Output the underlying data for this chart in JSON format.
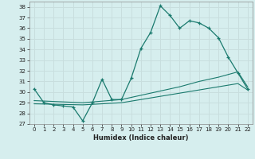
{
  "xlabel": "Humidex (Indice chaleur)",
  "bg_color": "#d6eeee",
  "grid_color": "#c8dede",
  "line_color": "#1a7a6e",
  "xlim": [
    -0.5,
    22.5
  ],
  "ylim": [
    27,
    38.5
  ],
  "yticks": [
    27,
    28,
    29,
    30,
    31,
    32,
    33,
    34,
    35,
    36,
    37,
    38
  ],
  "xticks": [
    0,
    1,
    2,
    3,
    4,
    5,
    6,
    7,
    8,
    9,
    10,
    11,
    12,
    13,
    14,
    15,
    16,
    17,
    18,
    19,
    20,
    21,
    22
  ],
  "series1_x": [
    0,
    1,
    2,
    3,
    4,
    5,
    6,
    7,
    8,
    9,
    10,
    11,
    12,
    13,
    14,
    15,
    16,
    17,
    18,
    19,
    20,
    21,
    22
  ],
  "series1_y": [
    30.3,
    29.0,
    28.8,
    28.7,
    28.6,
    27.3,
    29.0,
    31.2,
    29.3,
    29.3,
    31.3,
    34.1,
    35.6,
    38.1,
    37.2,
    36.0,
    36.7,
    36.5,
    36.0,
    35.1,
    33.3,
    31.8,
    30.3
  ],
  "series2_x": [
    0,
    5,
    9,
    11,
    13,
    15,
    17,
    19,
    21,
    22
  ],
  "series2_y": [
    29.2,
    29.0,
    29.3,
    29.7,
    30.1,
    30.5,
    31.0,
    31.4,
    31.9,
    30.5
  ],
  "series3_x": [
    0,
    5,
    9,
    11,
    13,
    15,
    17,
    19,
    21,
    22
  ],
  "series3_y": [
    28.9,
    28.8,
    29.0,
    29.3,
    29.6,
    29.9,
    30.2,
    30.5,
    30.8,
    30.2
  ]
}
